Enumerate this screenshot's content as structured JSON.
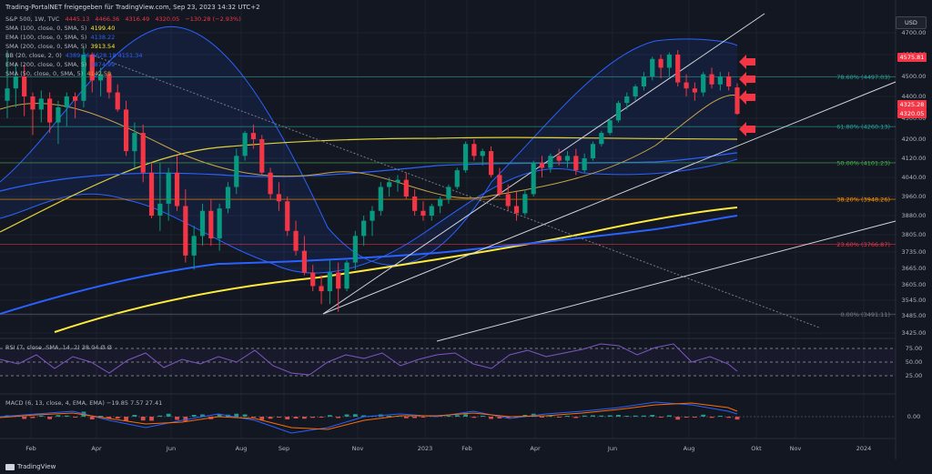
{
  "header": {
    "title": "Trading-PortalNET freigegeben für TradingView.com, Sep 23, 2023 14:32 UTC+2"
  },
  "ohlc": {
    "symbol": "S&P 500, 1W, TVC",
    "open": "4445.13",
    "high": "4466.36",
    "low": "4316.49",
    "close": "4320.05",
    "change": "−130.28 (−2.93%)"
  },
  "indicators": [
    {
      "label": "SMA (100, close, 0, SMA, 5)",
      "value": "4199.40",
      "color": "#ffeb3b"
    },
    {
      "label": "EMA (100, close, 0, SMA, 5)",
      "value": "4138.22",
      "color": "#2962ff"
    },
    {
      "label": "SMA (200, close, 0, SMA, 5)",
      "value": "3913.54",
      "color": "#ffeb3b"
    },
    {
      "label": "BB (20, close, 2, 0)",
      "value": "4389.76  4628.18  4151.34",
      "color": "#2962ff"
    },
    {
      "label": "EMA (200, close, 0, SMA, 5)",
      "value": "3874.99",
      "color": "#2962ff"
    },
    {
      "label": "SMA (50, close, 0, SMA, 5)",
      "value": "4142.59",
      "color": "#c8a44a"
    }
  ],
  "rsi_label": "RSI (7, close, SMA, 14, 2)  38.04  Ø  Ø",
  "macd_label": "MACD (6, 13, close, 4, EMA, EMA)  −19.85  7.57  27.41",
  "currency": "USD",
  "footer": "TradingView",
  "price_axis": [
    "4700.00",
    "4600.00",
    "4500.00",
    "4400.00",
    "4300.00",
    "4200.00",
    "4120.00",
    "4040.00",
    "3960.00",
    "3880.00",
    "3805.00",
    "3735.00",
    "3665.00",
    "3605.00",
    "3545.00",
    "3485.00",
    "3425.00"
  ],
  "rsi_axis": [
    "75.00",
    "50.00",
    "25.00"
  ],
  "macd_axis": [
    "0.00"
  ],
  "price_tags": [
    {
      "label": "4575.81",
      "color": "#f23645"
    },
    {
      "label": "4325.28",
      "color": "#f23645"
    },
    {
      "label": "4320.05",
      "color": "#f23645"
    }
  ],
  "time_axis": [
    "Feb",
    "Apr",
    "Jun",
    "Aug",
    "Sep",
    "Nov",
    "2023",
    "Feb",
    "Apr",
    "Jun",
    "Aug",
    "Okt",
    "Nov",
    "2024"
  ],
  "fib_levels": [
    {
      "label": "78.60% (4497.03)",
      "color": "#26a69a"
    },
    {
      "label": "61.80% (4260.13)",
      "color": "#26a69a"
    },
    {
      "label": "50.00% (4101.23)",
      "color": "#4caf50"
    },
    {
      "label": "38.20% (3948.26)",
      "color": "#ff9800"
    },
    {
      "label": "23.60% (3766.87)",
      "color": "#f23645"
    },
    {
      "label": "0.00% (3491.11)",
      "color": "#787b86"
    }
  ],
  "chart_data": {
    "type": "candlestick",
    "up_color": "#089981",
    "down_color": "#f23645",
    "candles": [
      [
        4380,
        4620,
        4300,
        4440
      ],
      [
        4440,
        4560,
        4350,
        4500
      ],
      [
        4500,
        4550,
        4310,
        4400
      ],
      [
        4400,
        4420,
        4220,
        4340
      ],
      [
        4340,
        4430,
        4280,
        4390
      ],
      [
        4390,
        4420,
        4230,
        4280
      ],
      [
        4280,
        4380,
        4180,
        4350
      ],
      [
        4350,
        4420,
        4260,
        4400
      ],
      [
        4400,
        4420,
        4300,
        4380
      ],
      [
        4380,
        4640,
        4350,
        4600
      ],
      [
        4600,
        4610,
        4420,
        4480
      ],
      [
        4480,
        4540,
        4400,
        4510
      ],
      [
        4510,
        4520,
        4390,
        4420
      ],
      [
        4420,
        4460,
        4330,
        4340
      ],
      [
        4340,
        4380,
        4130,
        4150
      ],
      [
        4150,
        4280,
        4080,
        4230
      ],
      [
        4230,
        4270,
        4020,
        4060
      ],
      [
        4060,
        4100,
        3870,
        3880
      ],
      [
        3880,
        4100,
        3820,
        3930
      ],
      [
        3930,
        4080,
        3860,
        4060
      ],
      [
        4060,
        4130,
        3900,
        3920
      ],
      [
        3920,
        3990,
        3690,
        3720
      ],
      [
        3720,
        3840,
        3660,
        3800
      ],
      [
        3800,
        3930,
        3760,
        3900
      ],
      [
        3900,
        3950,
        3760,
        3790
      ],
      [
        3790,
        3930,
        3740,
        3910
      ],
      [
        3910,
        4020,
        3890,
        4000
      ],
      [
        4000,
        4160,
        3970,
        4130
      ],
      [
        4130,
        4240,
        4110,
        4230
      ],
      [
        4230,
        4270,
        4160,
        4200
      ],
      [
        4200,
        4220,
        4050,
        4060
      ],
      [
        4060,
        4080,
        3950,
        3970
      ],
      [
        3970,
        4020,
        3900,
        3940
      ],
      [
        3940,
        3960,
        3800,
        3820
      ],
      [
        3820,
        3860,
        3720,
        3740
      ],
      [
        3740,
        3800,
        3640,
        3650
      ],
      [
        3650,
        3680,
        3580,
        3600
      ],
      [
        3600,
        3640,
        3530,
        3580
      ],
      [
        3580,
        3700,
        3530,
        3650
      ],
      [
        3650,
        3690,
        3500,
        3590
      ],
      [
        3590,
        3700,
        3580,
        3690
      ],
      [
        3690,
        3820,
        3660,
        3800
      ],
      [
        3800,
        3880,
        3760,
        3860
      ],
      [
        3860,
        3920,
        3800,
        3900
      ],
      [
        3900,
        4020,
        3880,
        4000
      ],
      [
        4000,
        4040,
        3960,
        4020
      ],
      [
        4020,
        4050,
        3980,
        4030
      ],
      [
        4030,
        4060,
        3950,
        3960
      ],
      [
        3960,
        3990,
        3880,
        3900
      ],
      [
        3900,
        3940,
        3860,
        3880
      ],
      [
        3880,
        3930,
        3860,
        3920
      ],
      [
        3920,
        3960,
        3890,
        3950
      ],
      [
        3950,
        4010,
        3930,
        4000
      ],
      [
        4000,
        4080,
        3990,
        4070
      ],
      [
        4070,
        4190,
        4060,
        4180
      ],
      [
        4180,
        4200,
        4110,
        4130
      ],
      [
        4130,
        4160,
        4090,
        4150
      ],
      [
        4150,
        4170,
        4040,
        4050
      ],
      [
        4050,
        4080,
        3960,
        3970
      ],
      [
        3970,
        4010,
        3900,
        3920
      ],
      [
        3920,
        3980,
        3860,
        3890
      ],
      [
        3890,
        3990,
        3880,
        3970
      ],
      [
        3970,
        4110,
        3960,
        4100
      ],
      [
        4100,
        4130,
        4040,
        4080
      ],
      [
        4080,
        4140,
        4060,
        4130
      ],
      [
        4130,
        4160,
        4090,
        4110
      ],
      [
        4110,
        4150,
        4080,
        4130
      ],
      [
        4130,
        4160,
        4050,
        4070
      ],
      [
        4070,
        4140,
        4060,
        4120
      ],
      [
        4120,
        4190,
        4110,
        4180
      ],
      [
        4180,
        4240,
        4170,
        4230
      ],
      [
        4230,
        4300,
        4220,
        4290
      ],
      [
        4290,
        4380,
        4280,
        4370
      ],
      [
        4370,
        4420,
        4340,
        4400
      ],
      [
        4400,
        4460,
        4380,
        4450
      ],
      [
        4450,
        4520,
        4430,
        4500
      ],
      [
        4500,
        4590,
        4480,
        4580
      ],
      [
        4580,
        4600,
        4490,
        4540
      ],
      [
        4540,
        4610,
        4500,
        4600
      ],
      [
        4600,
        4620,
        4450,
        4470
      ],
      [
        4470,
        4510,
        4400,
        4440
      ],
      [
        4440,
        4470,
        4380,
        4420
      ],
      [
        4420,
        4520,
        4400,
        4510
      ],
      [
        4510,
        4540,
        4440,
        4460
      ],
      [
        4460,
        4520,
        4430,
        4500
      ],
      [
        4500,
        4520,
        4430,
        4450
      ],
      [
        4445,
        4466,
        4316,
        4320
      ]
    ]
  }
}
